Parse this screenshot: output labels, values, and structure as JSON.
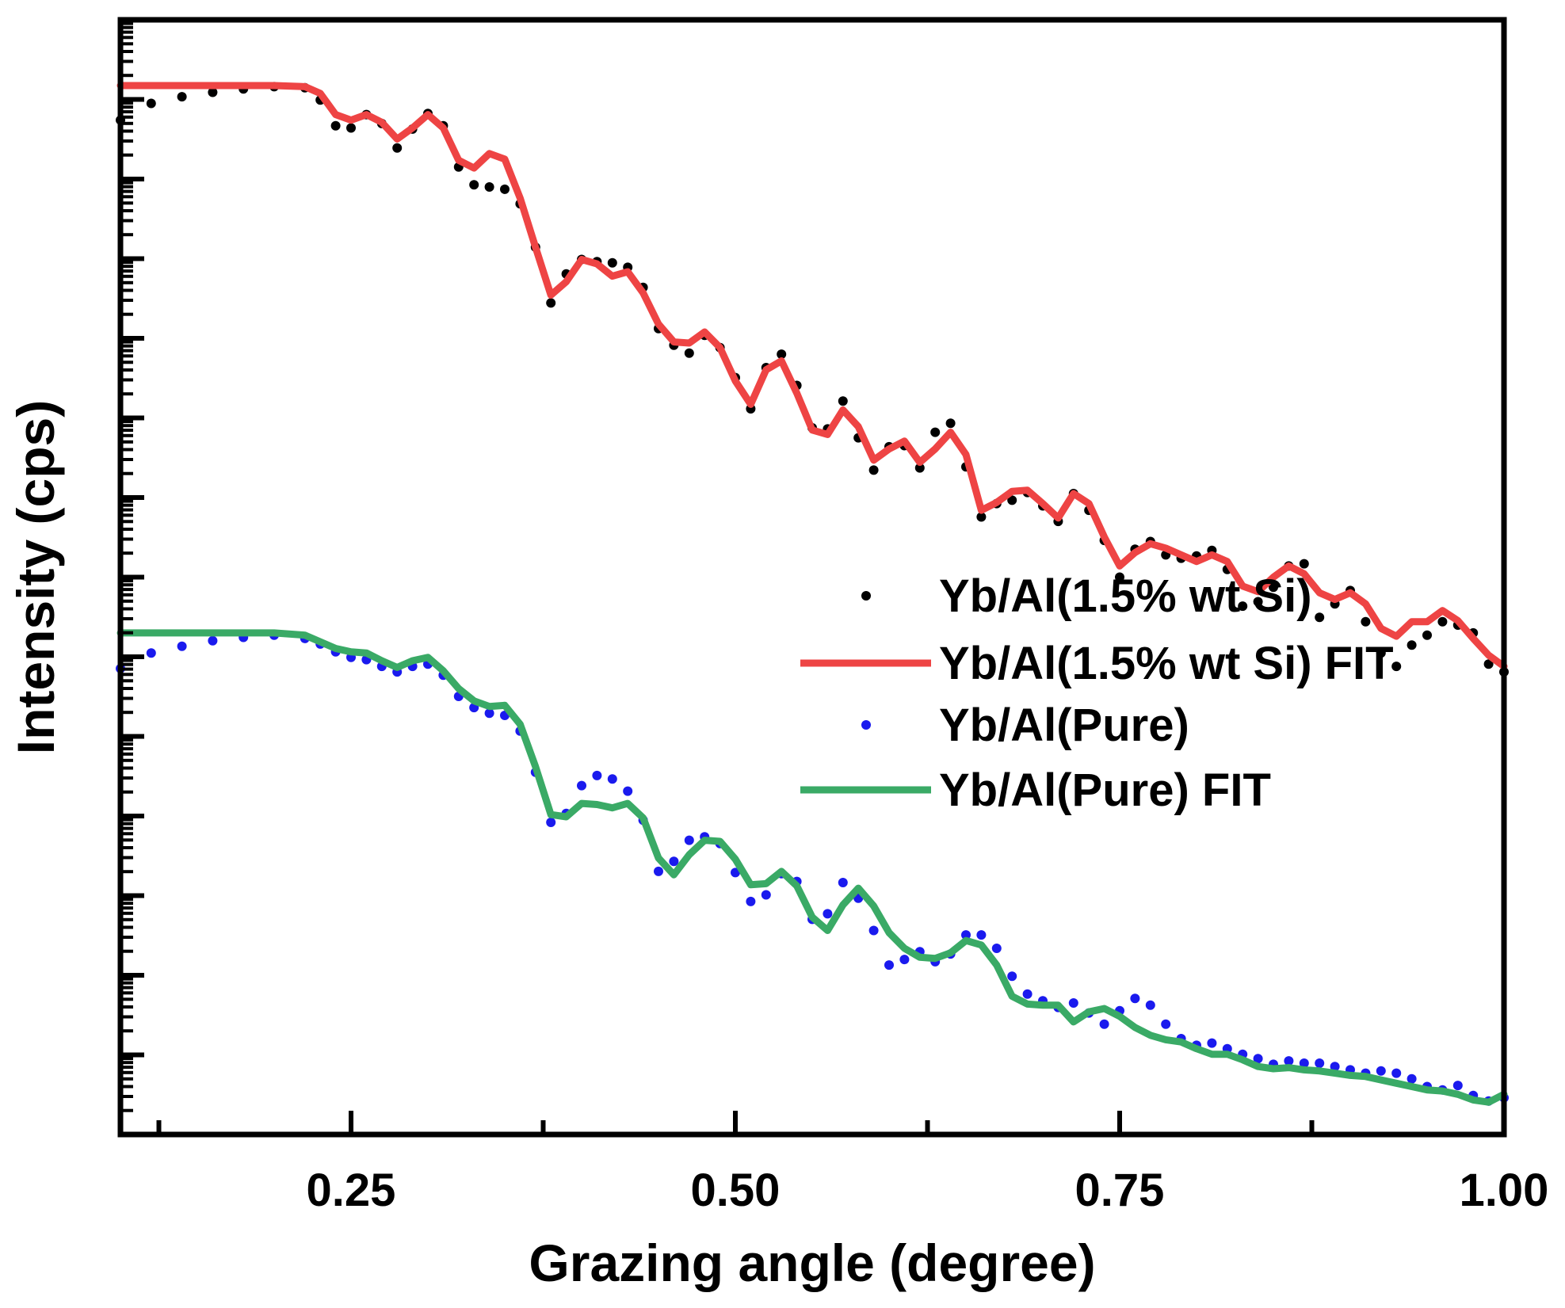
{
  "chart_data": {
    "type": "line",
    "title": "",
    "xlabel": "Grazing angle (degree)",
    "ylabel": "Intensity (cps)",
    "xlim": [
      0.1,
      1.0
    ],
    "ylim": [
      0,
      1
    ],
    "y_scale": "log",
    "y_tick_labels_shown": false,
    "grid": false,
    "legend_position": "right-middle",
    "x_ticks": [
      {
        "value": 0.25,
        "label": "0.25"
      },
      {
        "value": 0.5,
        "label": "0.50"
      },
      {
        "value": 0.75,
        "label": "0.75"
      },
      {
        "value": 1.0,
        "label": "1.00"
      }
    ],
    "series": [
      {
        "name": "Yb/Al(1.5% wt Si)",
        "style": "points",
        "color": "#000000",
        "x": [
          0.1,
          0.12,
          0.14,
          0.16,
          0.18,
          0.2,
          0.22,
          0.23,
          0.24,
          0.25,
          0.26,
          0.27,
          0.28,
          0.29,
          0.3,
          0.31,
          0.32,
          0.33,
          0.34,
          0.35,
          0.36,
          0.37,
          0.38,
          0.39,
          0.4,
          0.41,
          0.42,
          0.43,
          0.44,
          0.45,
          0.46,
          0.47,
          0.48,
          0.49,
          0.5,
          0.51,
          0.52,
          0.53,
          0.54,
          0.55,
          0.56,
          0.57,
          0.58,
          0.59,
          0.6,
          0.61,
          0.62,
          0.63,
          0.64,
          0.65,
          0.66,
          0.67,
          0.68,
          0.69,
          0.7,
          0.71,
          0.72,
          0.73,
          0.74,
          0.75,
          0.76,
          0.77,
          0.78,
          0.79,
          0.8,
          0.81,
          0.82,
          0.83,
          0.84,
          0.85,
          0.86,
          0.87,
          0.88,
          0.89,
          0.9,
          0.91,
          0.92,
          0.93,
          0.94,
          0.95,
          0.96,
          0.97,
          0.98,
          0.99,
          1.0
        ],
        "y": [
          0.91,
          0.925,
          0.931,
          0.935,
          0.938,
          0.94,
          0.939,
          0.928,
          0.905,
          0.903,
          0.915,
          0.907,
          0.885,
          0.902,
          0.916,
          0.905,
          0.868,
          0.852,
          0.85,
          0.848,
          0.835,
          0.796,
          0.746,
          0.772,
          0.785,
          0.783,
          0.782,
          0.778,
          0.76,
          0.723,
          0.708,
          0.701,
          0.717,
          0.706,
          0.679,
          0.651,
          0.688,
          0.7,
          0.672,
          0.634,
          0.633,
          0.658,
          0.625,
          0.596,
          0.617,
          0.618,
          0.598,
          0.63,
          0.638,
          0.599,
          0.554,
          0.566,
          0.569,
          0.576,
          0.564,
          0.55,
          0.575,
          0.56,
          0.533,
          0.5,
          0.525,
          0.532,
          0.52,
          0.517,
          0.519,
          0.524,
          0.507,
          0.474,
          0.478,
          0.491,
          0.51,
          0.512,
          0.464,
          0.476,
          0.488,
          0.46,
          0.432,
          0.42,
          0.439,
          0.448,
          0.46,
          0.457,
          0.45,
          0.422,
          0.415
        ]
      },
      {
        "name": "Yb/Al(1.5% wt Si) FIT",
        "style": "line",
        "color": "#ee4444",
        "x": [
          0.1,
          0.12,
          0.14,
          0.16,
          0.18,
          0.2,
          0.22,
          0.23,
          0.24,
          0.25,
          0.26,
          0.27,
          0.28,
          0.29,
          0.3,
          0.31,
          0.32,
          0.33,
          0.34,
          0.35,
          0.36,
          0.37,
          0.38,
          0.39,
          0.4,
          0.41,
          0.42,
          0.43,
          0.44,
          0.45,
          0.46,
          0.47,
          0.48,
          0.49,
          0.5,
          0.51,
          0.52,
          0.53,
          0.54,
          0.55,
          0.56,
          0.57,
          0.58,
          0.59,
          0.6,
          0.61,
          0.62,
          0.63,
          0.64,
          0.65,
          0.66,
          0.67,
          0.68,
          0.69,
          0.7,
          0.71,
          0.72,
          0.73,
          0.74,
          0.75,
          0.76,
          0.77,
          0.78,
          0.79,
          0.8,
          0.81,
          0.82,
          0.83,
          0.84,
          0.85,
          0.86,
          0.87,
          0.88,
          0.89,
          0.9,
          0.91,
          0.92,
          0.93,
          0.94,
          0.95,
          0.96,
          0.97,
          0.98,
          0.99,
          1.0
        ],
        "y": [
          0.941,
          0.941,
          0.941,
          0.941,
          0.941,
          0.941,
          0.94,
          0.934,
          0.915,
          0.91,
          0.915,
          0.908,
          0.893,
          0.903,
          0.915,
          0.903,
          0.874,
          0.867,
          0.88,
          0.875,
          0.84,
          0.796,
          0.753,
          0.765,
          0.785,
          0.781,
          0.77,
          0.774,
          0.755,
          0.727,
          0.711,
          0.71,
          0.72,
          0.706,
          0.676,
          0.655,
          0.686,
          0.694,
          0.665,
          0.632,
          0.628,
          0.65,
          0.635,
          0.605,
          0.615,
          0.622,
          0.603,
          0.615,
          0.63,
          0.61,
          0.56,
          0.567,
          0.577,
          0.578,
          0.566,
          0.553,
          0.575,
          0.566,
          0.536,
          0.51,
          0.522,
          0.53,
          0.526,
          0.52,
          0.514,
          0.52,
          0.514,
          0.492,
          0.487,
          0.5,
          0.51,
          0.503,
          0.486,
          0.48,
          0.486,
          0.476,
          0.454,
          0.447,
          0.46,
          0.46,
          0.47,
          0.461,
          0.445,
          0.43,
          0.42
        ]
      },
      {
        "name": "Yb/Al(Pure)",
        "style": "points",
        "color": "#1a1aee",
        "x": [
          0.1,
          0.12,
          0.14,
          0.16,
          0.18,
          0.2,
          0.22,
          0.23,
          0.24,
          0.25,
          0.26,
          0.27,
          0.28,
          0.29,
          0.3,
          0.31,
          0.32,
          0.33,
          0.34,
          0.35,
          0.36,
          0.37,
          0.38,
          0.39,
          0.4,
          0.41,
          0.42,
          0.43,
          0.44,
          0.45,
          0.46,
          0.47,
          0.48,
          0.49,
          0.5,
          0.51,
          0.52,
          0.53,
          0.54,
          0.55,
          0.56,
          0.57,
          0.58,
          0.59,
          0.6,
          0.61,
          0.62,
          0.63,
          0.64,
          0.65,
          0.66,
          0.67,
          0.68,
          0.69,
          0.7,
          0.71,
          0.72,
          0.73,
          0.74,
          0.75,
          0.76,
          0.77,
          0.78,
          0.79,
          0.8,
          0.81,
          0.82,
          0.83,
          0.84,
          0.85,
          0.86,
          0.87,
          0.88,
          0.89,
          0.9,
          0.91,
          0.92,
          0.93,
          0.94,
          0.95,
          0.96,
          0.97,
          0.98,
          0.99,
          1.0
        ],
        "y": [
          0.418,
          0.432,
          0.438,
          0.443,
          0.446,
          0.448,
          0.445,
          0.44,
          0.433,
          0.428,
          0.426,
          0.42,
          0.415,
          0.42,
          0.422,
          0.412,
          0.393,
          0.383,
          0.378,
          0.376,
          0.362,
          0.325,
          0.28,
          0.288,
          0.313,
          0.322,
          0.319,
          0.308,
          0.282,
          0.236,
          0.245,
          0.264,
          0.267,
          0.261,
          0.235,
          0.209,
          0.215,
          0.234,
          0.227,
          0.193,
          0.198,
          0.226,
          0.212,
          0.183,
          0.152,
          0.157,
          0.164,
          0.155,
          0.162,
          0.179,
          0.179,
          0.167,
          0.142,
          0.126,
          0.12,
          0.114,
          0.118,
          0.109,
          0.099,
          0.111,
          0.122,
          0.116,
          0.099,
          0.086,
          0.08,
          0.082,
          0.077,
          0.072,
          0.068,
          0.063,
          0.066,
          0.064,
          0.064,
          0.061,
          0.058,
          0.055,
          0.057,
          0.055,
          0.05,
          0.043,
          0.04,
          0.044,
          0.035,
          0.03,
          0.033
        ]
      },
      {
        "name": "Yb/Al(Pure) FIT",
        "style": "line",
        "color": "#3aaa66",
        "x": [
          0.1,
          0.12,
          0.14,
          0.16,
          0.18,
          0.2,
          0.22,
          0.23,
          0.24,
          0.25,
          0.26,
          0.27,
          0.28,
          0.29,
          0.3,
          0.31,
          0.32,
          0.33,
          0.34,
          0.35,
          0.36,
          0.37,
          0.38,
          0.39,
          0.4,
          0.41,
          0.42,
          0.43,
          0.44,
          0.45,
          0.46,
          0.47,
          0.48,
          0.49,
          0.5,
          0.51,
          0.52,
          0.53,
          0.54,
          0.55,
          0.56,
          0.57,
          0.58,
          0.59,
          0.6,
          0.61,
          0.62,
          0.63,
          0.64,
          0.65,
          0.66,
          0.67,
          0.68,
          0.69,
          0.7,
          0.71,
          0.72,
          0.73,
          0.74,
          0.75,
          0.76,
          0.77,
          0.78,
          0.79,
          0.8,
          0.81,
          0.82,
          0.83,
          0.84,
          0.85,
          0.86,
          0.87,
          0.88,
          0.89,
          0.9,
          0.91,
          0.92,
          0.93,
          0.94,
          0.95,
          0.96,
          0.97,
          0.98,
          0.99,
          1.0
        ],
        "y": [
          0.45,
          0.45,
          0.45,
          0.45,
          0.45,
          0.45,
          0.448,
          0.442,
          0.436,
          0.433,
          0.432,
          0.425,
          0.419,
          0.425,
          0.428,
          0.416,
          0.4,
          0.389,
          0.384,
          0.385,
          0.368,
          0.33,
          0.287,
          0.285,
          0.297,
          0.296,
          0.293,
          0.297,
          0.284,
          0.248,
          0.233,
          0.251,
          0.264,
          0.263,
          0.247,
          0.224,
          0.225,
          0.236,
          0.223,
          0.195,
          0.183,
          0.206,
          0.221,
          0.205,
          0.181,
          0.167,
          0.159,
          0.158,
          0.163,
          0.174,
          0.17,
          0.152,
          0.124,
          0.117,
          0.116,
          0.116,
          0.101,
          0.11,
          0.113,
          0.106,
          0.096,
          0.089,
          0.085,
          0.083,
          0.077,
          0.072,
          0.072,
          0.067,
          0.061,
          0.059,
          0.06,
          0.058,
          0.057,
          0.055,
          0.053,
          0.052,
          0.049,
          0.046,
          0.043,
          0.04,
          0.039,
          0.036,
          0.031,
          0.029,
          0.036
        ]
      }
    ]
  }
}
